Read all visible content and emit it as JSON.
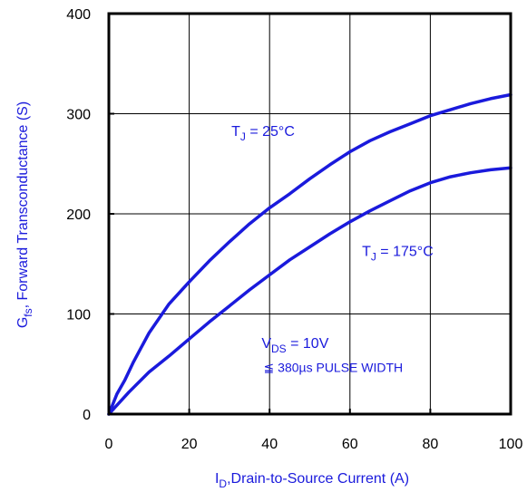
{
  "chart_data": {
    "type": "line",
    "xlabel": {
      "main": "I",
      "sub": "D",
      "rest": ",Drain-to-Source Current (A)"
    },
    "ylabel": {
      "main": "G",
      "sub": "fs",
      "rest": ", Forward Transconductance (S)"
    },
    "xlim": [
      0,
      100
    ],
    "ylim": [
      0,
      400
    ],
    "xticks": [
      "0",
      "20",
      "40",
      "60",
      "80",
      "100"
    ],
    "yticks": [
      "0",
      "100",
      "200",
      "300",
      "400"
    ],
    "grid": true,
    "colors": {
      "series": "#1a1adc",
      "axis": "#000000",
      "grid": "#000000",
      "label": "#1a1adc"
    },
    "series": [
      {
        "x": [
          0,
          2,
          4,
          6,
          8,
          10,
          15,
          20,
          25,
          30,
          35,
          40,
          45,
          50,
          55,
          60,
          65,
          70,
          75,
          80,
          85,
          90,
          95,
          100
        ],
        "y": [
          0,
          20,
          34,
          51,
          66,
          81,
          110,
          132,
          153,
          172,
          190,
          206,
          220,
          235,
          249,
          262,
          273,
          282,
          290,
          298,
          304,
          310,
          315,
          319
        ]
      },
      {
        "x": [
          0,
          5,
          10,
          15,
          20,
          25,
          30,
          35,
          40,
          45,
          50,
          55,
          60,
          65,
          70,
          75,
          80,
          85,
          90,
          95,
          100
        ],
        "y": [
          0,
          22,
          42,
          58,
          75,
          92,
          108,
          124,
          139,
          154,
          167,
          180,
          192,
          203,
          213,
          223,
          231,
          237,
          241,
          244,
          246
        ]
      }
    ],
    "annotations": [
      {
        "id": "tj25",
        "main": "T",
        "sub": "J",
        "rest": " = 25°C",
        "x": 30.5,
        "y": 278
      },
      {
        "id": "tj175",
        "main": "T",
        "sub": "J",
        "rest": " = 175°C",
        "x": 63,
        "y": 158
      },
      {
        "id": "vds",
        "main": "V",
        "sub": "DS",
        "rest": " = 10V",
        "x": 38,
        "y": 66
      },
      {
        "id": "pulse",
        "text": "≦ 380µs PULSE WIDTH",
        "x": 38.5,
        "y": 42
      }
    ]
  }
}
